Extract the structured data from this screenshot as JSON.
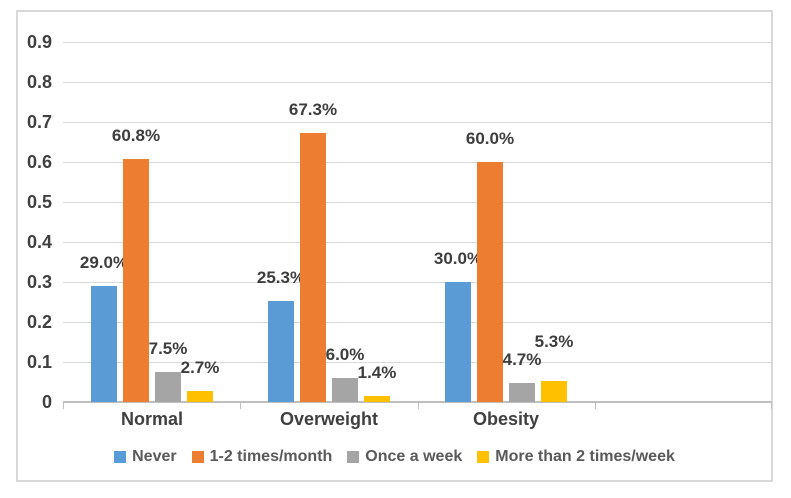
{
  "chart_data": {
    "type": "bar",
    "title": "",
    "categories": [
      "Normal",
      "Overweight",
      "Obesity"
    ],
    "series": [
      {
        "name": "Never",
        "color": "#5B9BD5",
        "values": [
          0.29,
          0.253,
          0.3
        ],
        "data_labels": [
          "29.0%",
          "25.3%",
          "30.0%"
        ]
      },
      {
        "name": "1-2 times/month",
        "color": "#ED7D31",
        "values": [
          0.608,
          0.673,
          0.6
        ],
        "data_labels": [
          "60.8%",
          "67.3%",
          "60.0%"
        ]
      },
      {
        "name": "Once a week",
        "color": "#A5A5A5",
        "values": [
          0.075,
          0.06,
          0.047
        ],
        "data_labels": [
          "7.5%",
          "6.0%",
          "4.7%"
        ]
      },
      {
        "name": "More than 2 times/week",
        "color": "#FFC000",
        "values": [
          0.027,
          0.014,
          0.053
        ],
        "data_labels": [
          "2.7%",
          "1.4%",
          "5.3%"
        ]
      }
    ],
    "y_axis": {
      "ticks": [
        "0.9",
        "0.8",
        "0.7",
        "0.6",
        "0.5",
        "0.4",
        "0.3",
        "0.2",
        "0.1",
        "0"
      ],
      "min": 0,
      "max": 0.9
    },
    "x_slots": 4,
    "grid": true,
    "legend_position": "bottom",
    "colors": {
      "gridline": "#D9D9D9",
      "axis": "#BFBFBF",
      "axis_text": "#404040",
      "data_label_text": "#3D3D3D",
      "legend_text": "#595959",
      "frame_border": "#D9D9D9",
      "background": "#FFFFFF"
    }
  }
}
